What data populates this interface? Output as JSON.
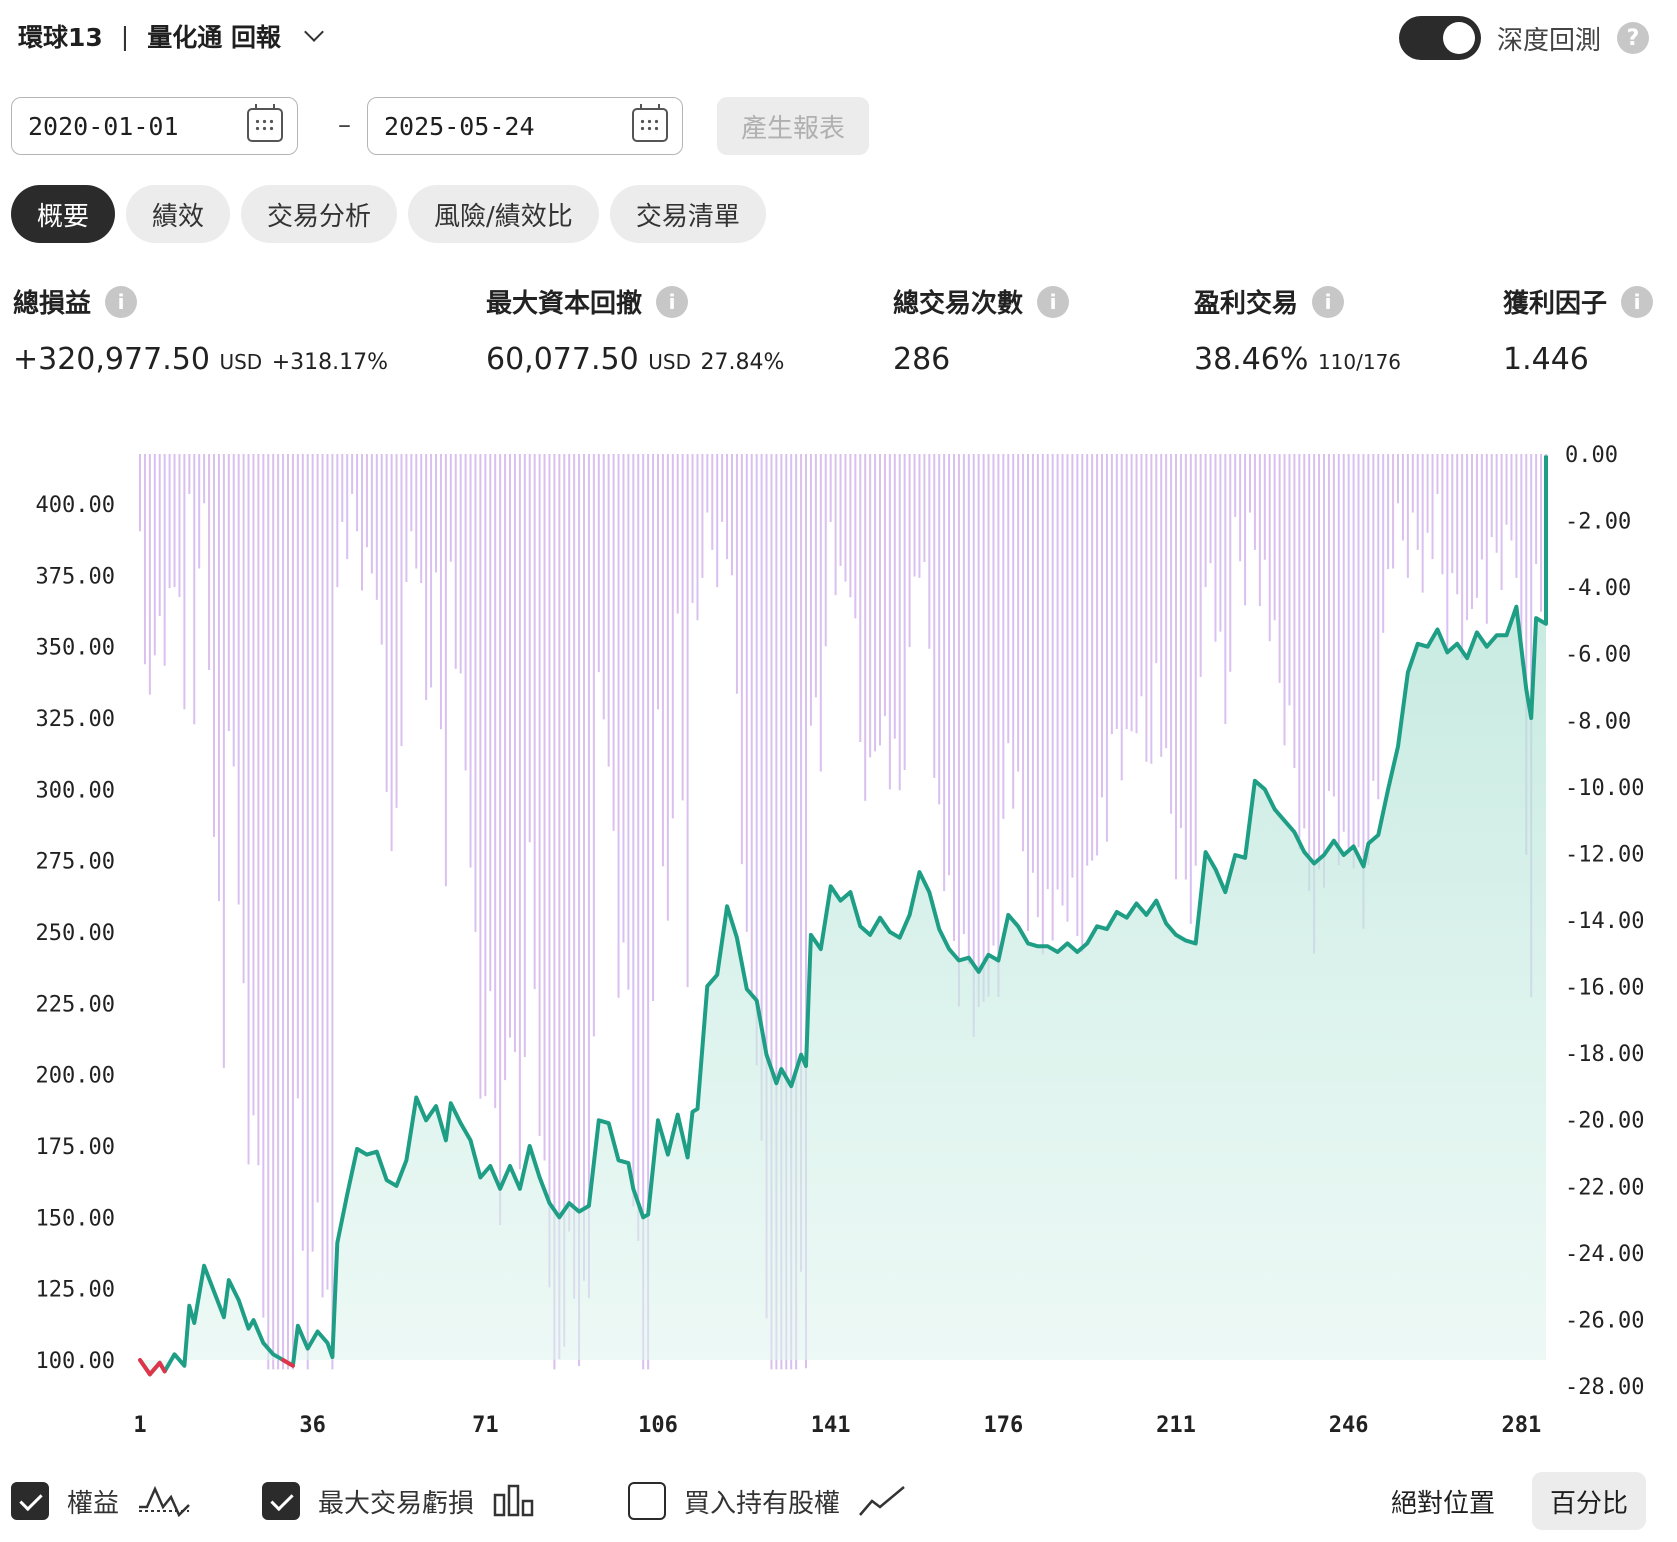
{
  "header": {
    "strategy": "環球13",
    "separator": "|",
    "title": "量化通 回報"
  },
  "deep_backtest": {
    "label": "深度回測",
    "enabled": true,
    "help": "?"
  },
  "date_range": {
    "start": "2020-01-01",
    "end": "2025-05-24",
    "dash": "–",
    "generate_label": "產生報表"
  },
  "tabs": [
    {
      "label": "概要",
      "active": true
    },
    {
      "label": "績效",
      "active": false
    },
    {
      "label": "交易分析",
      "active": false
    },
    {
      "label": "風險/績效比",
      "active": false
    },
    {
      "label": "交易清單",
      "active": false
    }
  ],
  "stats": {
    "total_pnl": {
      "label": "總損益",
      "value": "+320,977.50",
      "unit": "USD",
      "pct": "+318.17%"
    },
    "max_drawdown": {
      "label": "最大資本回撤",
      "value": "60,077.50",
      "unit": "USD",
      "pct": "27.84%"
    },
    "total_trades": {
      "label": "總交易次數",
      "value": "286"
    },
    "profitable": {
      "label": "盈利交易",
      "value": "38.46%",
      "detail": "110/176"
    },
    "profit_factor": {
      "label": "獲利因子",
      "value": "1.446"
    },
    "info_icon": "i"
  },
  "chart_data": {
    "type": "line",
    "x_ticks": [
      1,
      36,
      71,
      106,
      141,
      176,
      211,
      246,
      281
    ],
    "x_range": [
      1,
      286
    ],
    "left_axis": {
      "ticks": [
        "400.00",
        "375.00",
        "350.00",
        "325.00",
        "300.00",
        "275.00",
        "250.00",
        "225.00",
        "200.00",
        "175.00",
        "150.00",
        "125.00",
        "100.00"
      ],
      "range": [
        100,
        400
      ]
    },
    "right_axis": {
      "ticks": [
        "0.00",
        "-2.00",
        "-4.00",
        "-6.00",
        "-8.00",
        "-10.00",
        "-12.00",
        "-14.00",
        "-16.00",
        "-18.00",
        "-20.00",
        "-22.00",
        "-24.00",
        "-26.00",
        "-28.00"
      ],
      "range": [
        -28,
        0
      ]
    },
    "series": [
      {
        "name": "權益",
        "color": "#1f9e86",
        "negative_color": "#e0344b",
        "points": [
          [
            1,
            100
          ],
          [
            3,
            95
          ],
          [
            5,
            99
          ],
          [
            6,
            96
          ],
          [
            8,
            102
          ],
          [
            10,
            98
          ],
          [
            11,
            119
          ],
          [
            12,
            113
          ],
          [
            14,
            133
          ],
          [
            16,
            124
          ],
          [
            18,
            115
          ],
          [
            19,
            128
          ],
          [
            21,
            121
          ],
          [
            23,
            111
          ],
          [
            24,
            114
          ],
          [
            26,
            106
          ],
          [
            28,
            102
          ],
          [
            30,
            100
          ],
          [
            32,
            98
          ],
          [
            33,
            112
          ],
          [
            35,
            104
          ],
          [
            37,
            110
          ],
          [
            39,
            106
          ],
          [
            40,
            101
          ],
          [
            41,
            141
          ],
          [
            43,
            158
          ],
          [
            45,
            174
          ],
          [
            47,
            172
          ],
          [
            49,
            173
          ],
          [
            51,
            163
          ],
          [
            53,
            161
          ],
          [
            55,
            170
          ],
          [
            57,
            192
          ],
          [
            59,
            184
          ],
          [
            61,
            189
          ],
          [
            63,
            177
          ],
          [
            64,
            190
          ],
          [
            66,
            183
          ],
          [
            68,
            177
          ],
          [
            70,
            164
          ],
          [
            72,
            168
          ],
          [
            74,
            160
          ],
          [
            76,
            168
          ],
          [
            78,
            160
          ],
          [
            80,
            175
          ],
          [
            82,
            164
          ],
          [
            84,
            155
          ],
          [
            86,
            150
          ],
          [
            88,
            155
          ],
          [
            90,
            152
          ],
          [
            92,
            154
          ],
          [
            94,
            184
          ],
          [
            96,
            183
          ],
          [
            98,
            170
          ],
          [
            100,
            169
          ],
          [
            101,
            160
          ],
          [
            103,
            150
          ],
          [
            104,
            151
          ],
          [
            106,
            184
          ],
          [
            108,
            172
          ],
          [
            110,
            186
          ],
          [
            112,
            171
          ],
          [
            113,
            187
          ],
          [
            114,
            188
          ],
          [
            116,
            231
          ],
          [
            118,
            235
          ],
          [
            120,
            259
          ],
          [
            122,
            248
          ],
          [
            124,
            230
          ],
          [
            126,
            226
          ],
          [
            128,
            207
          ],
          [
            130,
            197
          ],
          [
            131,
            202
          ],
          [
            133,
            196
          ],
          [
            135,
            207
          ],
          [
            136,
            203
          ],
          [
            137,
            249
          ],
          [
            139,
            244
          ],
          [
            141,
            266
          ],
          [
            143,
            261
          ],
          [
            145,
            264
          ],
          [
            147,
            252
          ],
          [
            149,
            249
          ],
          [
            151,
            255
          ],
          [
            153,
            250
          ],
          [
            155,
            248
          ],
          [
            157,
            256
          ],
          [
            159,
            271
          ],
          [
            161,
            264
          ],
          [
            163,
            251
          ],
          [
            165,
            244
          ],
          [
            167,
            240
          ],
          [
            169,
            241
          ],
          [
            171,
            236
          ],
          [
            173,
            242
          ],
          [
            175,
            240
          ],
          [
            177,
            256
          ],
          [
            179,
            252
          ],
          [
            181,
            246
          ],
          [
            183,
            245
          ],
          [
            185,
            245
          ],
          [
            187,
            243
          ],
          [
            189,
            246
          ],
          [
            191,
            243
          ],
          [
            193,
            246
          ],
          [
            195,
            252
          ],
          [
            197,
            251
          ],
          [
            199,
            257
          ],
          [
            201,
            255
          ],
          [
            203,
            260
          ],
          [
            205,
            256
          ],
          [
            207,
            261
          ],
          [
            209,
            253
          ],
          [
            211,
            249
          ],
          [
            213,
            247
          ],
          [
            215,
            246
          ],
          [
            217,
            278
          ],
          [
            219,
            272
          ],
          [
            221,
            264
          ],
          [
            223,
            277
          ],
          [
            225,
            276
          ],
          [
            227,
            303
          ],
          [
            229,
            300
          ],
          [
            231,
            293
          ],
          [
            233,
            289
          ],
          [
            235,
            285
          ],
          [
            237,
            278
          ],
          [
            239,
            274
          ],
          [
            241,
            277
          ],
          [
            243,
            282
          ],
          [
            245,
            277
          ],
          [
            247,
            280
          ],
          [
            249,
            273
          ],
          [
            250,
            281
          ],
          [
            252,
            284
          ],
          [
            254,
            300
          ],
          [
            256,
            315
          ],
          [
            258,
            341
          ],
          [
            260,
            351
          ],
          [
            262,
            350
          ],
          [
            264,
            356
          ],
          [
            266,
            348
          ],
          [
            268,
            351
          ],
          [
            270,
            346
          ],
          [
            272,
            355
          ],
          [
            274,
            350
          ],
          [
            276,
            354
          ],
          [
            278,
            354
          ],
          [
            280,
            364
          ],
          [
            282,
            335
          ],
          [
            283,
            325
          ],
          [
            284,
            360
          ],
          [
            286,
            358
          ],
          [
            288,
            410
          ],
          [
            290,
            388
          ],
          [
            292,
            398
          ],
          [
            294,
            395
          ],
          [
            295,
            412
          ],
          [
            296,
            417
          ]
        ]
      },
      {
        "name": "最大交易虧損",
        "color": "#d9c0ee"
      }
    ]
  },
  "legend": [
    {
      "label": "權益",
      "checked": true,
      "icon": "equity-line-icon"
    },
    {
      "label": "最大交易虧損",
      "checked": true,
      "icon": "bar-chart-icon"
    },
    {
      "label": "買入持有股權",
      "checked": false,
      "icon": "trend-line-icon"
    }
  ],
  "modes": {
    "absolute": "絕對位置",
    "percent": "百分比",
    "active": "percent"
  }
}
